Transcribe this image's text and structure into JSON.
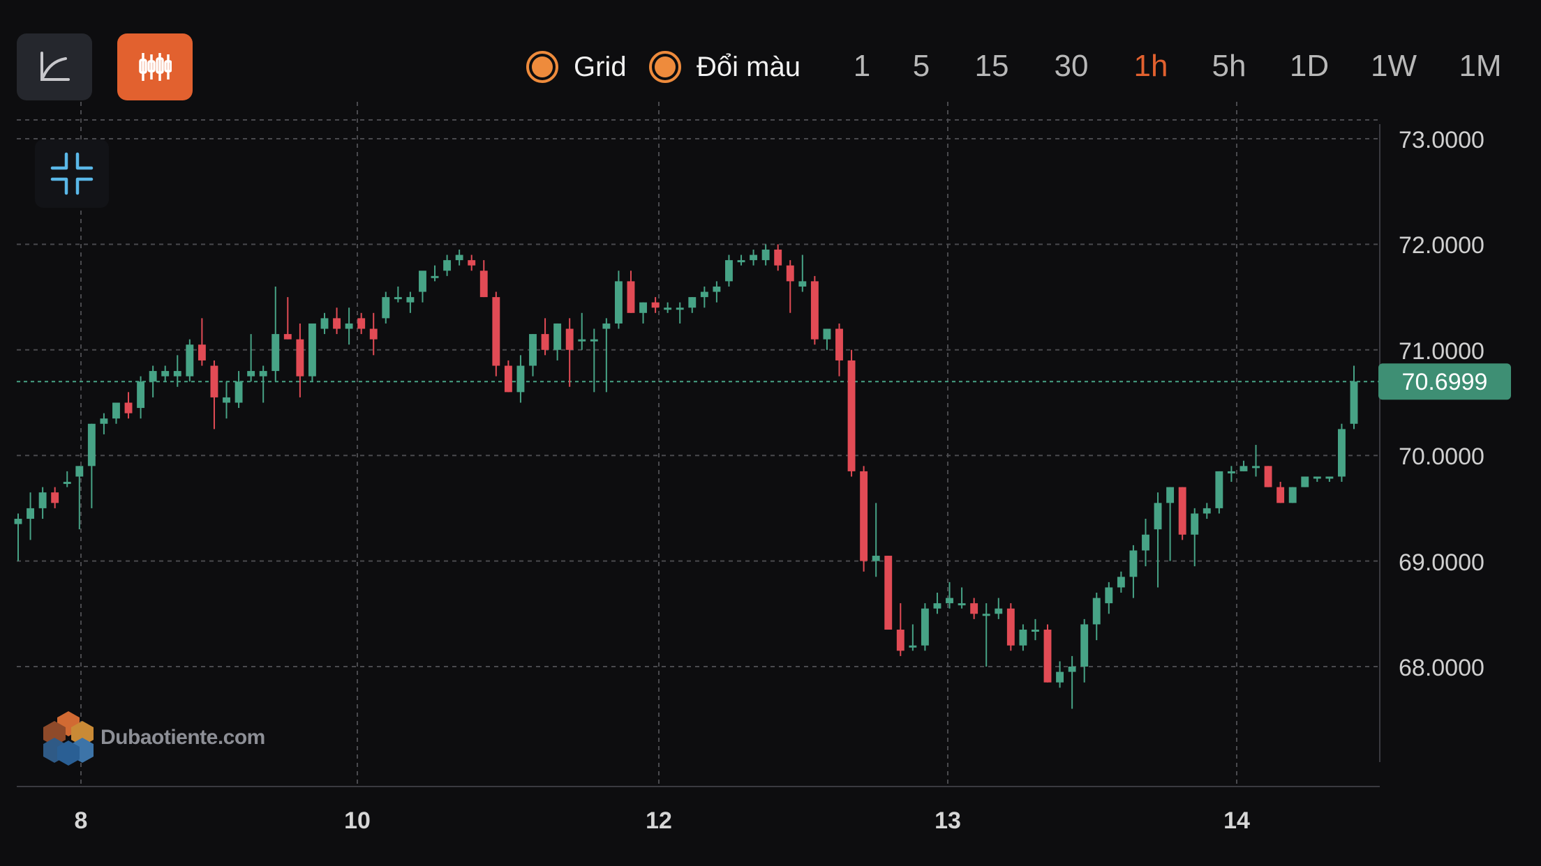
{
  "toolbar": {
    "chart_mode_buttons": [
      {
        "icon": "line-chart-icon",
        "active": false
      },
      {
        "icon": "candlestick-icon",
        "active": true
      }
    ],
    "toggles": [
      {
        "label": "Grid",
        "checked": true
      },
      {
        "label": "Đổi màu",
        "checked": true
      }
    ],
    "timeframes": [
      "1",
      "5",
      "15",
      "30",
      "1h",
      "5h",
      "1D",
      "1W",
      "1M"
    ],
    "active_timeframe": "1h",
    "collapse_icon": "collapse-arrows-icon"
  },
  "colors": {
    "background": "#0d0d0f",
    "up": "#47a386",
    "down": "#e24b55",
    "accent": "#e2612f",
    "grid": "#4a4a4e",
    "price_tag": "#3e8f74"
  },
  "watermark": {
    "text": "Dubaotiente.com",
    "icon": "dubaotiente-logo-icon"
  },
  "chart_data": {
    "type": "candlestick",
    "x_tick_labels": [
      "8",
      "10",
      "12",
      "13",
      "14"
    ],
    "y_tick_labels": [
      "73.0000",
      "72.0000",
      "71.0000",
      "70.0000",
      "69.0000",
      "68.0000"
    ],
    "y_ticks": [
      73,
      72,
      71,
      70,
      69,
      68
    ],
    "ylim": [
      67.1,
      73.2
    ],
    "grid": true,
    "last_price": 70.6999,
    "last_price_label": "70.6999",
    "candles": [
      [
        69.35,
        69.45,
        69.0,
        69.4
      ],
      [
        69.4,
        69.65,
        69.2,
        69.5
      ],
      [
        69.5,
        69.7,
        69.4,
        69.65
      ],
      [
        69.65,
        69.7,
        69.5,
        69.55
      ],
      [
        69.75,
        69.85,
        69.7,
        69.75
      ],
      [
        69.8,
        69.9,
        69.3,
        69.9
      ],
      [
        69.9,
        70.3,
        69.5,
        70.3
      ],
      [
        70.3,
        70.4,
        70.2,
        70.35
      ],
      [
        70.35,
        70.5,
        70.3,
        70.5
      ],
      [
        70.5,
        70.6,
        70.35,
        70.4
      ],
      [
        70.45,
        70.75,
        70.35,
        70.7
      ],
      [
        70.7,
        70.85,
        70.55,
        70.8
      ],
      [
        70.75,
        70.85,
        70.7,
        70.8
      ],
      [
        70.75,
        70.95,
        70.65,
        70.8
      ],
      [
        70.75,
        71.1,
        70.7,
        71.05
      ],
      [
        71.05,
        71.3,
        70.85,
        70.9
      ],
      [
        70.85,
        70.9,
        70.25,
        70.55
      ],
      [
        70.5,
        70.7,
        70.35,
        70.55
      ],
      [
        70.5,
        70.8,
        70.45,
        70.7
      ],
      [
        70.75,
        71.15,
        70.7,
        70.8
      ],
      [
        70.75,
        70.85,
        70.5,
        70.8
      ],
      [
        70.8,
        71.6,
        70.7,
        71.15
      ],
      [
        71.15,
        71.5,
        71.1,
        71.1
      ],
      [
        71.1,
        71.25,
        70.55,
        70.75
      ],
      [
        70.75,
        71.25,
        70.7,
        71.25
      ],
      [
        71.2,
        71.35,
        71.15,
        71.3
      ],
      [
        71.3,
        71.4,
        71.15,
        71.2
      ],
      [
        71.2,
        71.4,
        71.05,
        71.25
      ],
      [
        71.3,
        71.35,
        71.15,
        71.2
      ],
      [
        71.2,
        71.35,
        70.95,
        71.1
      ],
      [
        71.3,
        71.55,
        71.25,
        71.5
      ],
      [
        71.5,
        71.6,
        71.45,
        71.5
      ],
      [
        71.45,
        71.55,
        71.35,
        71.5
      ],
      [
        71.55,
        71.7,
        71.45,
        71.75
      ],
      [
        71.7,
        71.8,
        71.65,
        71.7
      ],
      [
        71.75,
        71.9,
        71.7,
        71.85
      ],
      [
        71.85,
        71.95,
        71.8,
        71.9
      ],
      [
        71.85,
        71.9,
        71.75,
        71.8
      ],
      [
        71.75,
        71.85,
        71.5,
        71.5
      ],
      [
        71.5,
        71.55,
        70.75,
        70.85
      ],
      [
        70.85,
        70.9,
        70.6,
        70.6
      ],
      [
        70.6,
        70.95,
        70.5,
        70.85
      ],
      [
        70.85,
        71.15,
        70.75,
        71.15
      ],
      [
        71.15,
        71.3,
        70.95,
        71.0
      ],
      [
        71.0,
        71.25,
        70.9,
        71.25
      ],
      [
        71.2,
        71.3,
        70.65,
        71.0
      ],
      [
        71.1,
        71.35,
        71.0,
        71.1
      ],
      [
        71.1,
        71.2,
        70.6,
        71.1
      ],
      [
        71.2,
        71.3,
        70.6,
        71.25
      ],
      [
        71.25,
        71.75,
        71.2,
        71.65
      ],
      [
        71.65,
        71.75,
        71.35,
        71.35
      ],
      [
        71.35,
        71.45,
        71.25,
        71.45
      ],
      [
        71.45,
        71.5,
        71.35,
        71.4
      ],
      [
        71.4,
        71.45,
        71.35,
        71.4
      ],
      [
        71.4,
        71.45,
        71.25,
        71.4
      ],
      [
        71.4,
        71.5,
        71.35,
        71.5
      ],
      [
        71.5,
        71.6,
        71.4,
        71.55
      ],
      [
        71.55,
        71.65,
        71.45,
        71.6
      ],
      [
        71.65,
        71.9,
        71.6,
        71.85
      ],
      [
        71.85,
        71.9,
        71.8,
        71.85
      ],
      [
        71.85,
        71.95,
        71.8,
        71.9
      ],
      [
        71.85,
        72.0,
        71.8,
        71.95
      ],
      [
        71.95,
        72.0,
        71.75,
        71.8
      ],
      [
        71.8,
        71.85,
        71.35,
        71.65
      ],
      [
        71.6,
        71.9,
        71.55,
        71.65
      ],
      [
        71.65,
        71.7,
        71.05,
        71.1
      ],
      [
        71.1,
        71.2,
        71.0,
        71.2
      ],
      [
        71.2,
        71.25,
        70.75,
        70.9
      ],
      [
        70.9,
        71.0,
        69.8,
        69.85
      ],
      [
        69.85,
        69.9,
        68.9,
        69.0
      ],
      [
        69.0,
        69.55,
        68.85,
        69.05
      ],
      [
        69.05,
        69.05,
        68.35,
        68.35
      ],
      [
        68.35,
        68.6,
        68.1,
        68.15
      ],
      [
        68.2,
        68.4,
        68.15,
        68.2
      ],
      [
        68.2,
        68.6,
        68.15,
        68.55
      ],
      [
        68.55,
        68.7,
        68.5,
        68.6
      ],
      [
        68.6,
        68.8,
        68.55,
        68.65
      ],
      [
        68.6,
        68.75,
        68.55,
        68.6
      ],
      [
        68.6,
        68.65,
        68.45,
        68.5
      ],
      [
        68.5,
        68.6,
        68.0,
        68.5
      ],
      [
        68.5,
        68.65,
        68.45,
        68.55
      ],
      [
        68.55,
        68.6,
        68.15,
        68.2
      ],
      [
        68.2,
        68.4,
        68.15,
        68.35
      ],
      [
        68.35,
        68.45,
        68.25,
        68.35
      ],
      [
        68.35,
        68.4,
        67.85,
        67.85
      ],
      [
        67.85,
        68.05,
        67.8,
        67.95
      ],
      [
        67.95,
        68.1,
        67.6,
        68.0
      ],
      [
        68.0,
        68.45,
        67.85,
        68.4
      ],
      [
        68.4,
        68.7,
        68.25,
        68.65
      ],
      [
        68.6,
        68.8,
        68.5,
        68.75
      ],
      [
        68.75,
        68.9,
        68.7,
        68.85
      ],
      [
        68.85,
        69.15,
        68.65,
        69.1
      ],
      [
        69.1,
        69.4,
        68.95,
        69.25
      ],
      [
        69.3,
        69.65,
        68.75,
        69.55
      ],
      [
        69.55,
        69.7,
        69.0,
        69.7
      ],
      [
        69.7,
        69.7,
        69.2,
        69.25
      ],
      [
        69.25,
        69.5,
        68.95,
        69.45
      ],
      [
        69.45,
        69.55,
        69.4,
        69.5
      ],
      [
        69.5,
        69.85,
        69.45,
        69.85
      ],
      [
        69.85,
        69.9,
        69.75,
        69.85
      ],
      [
        69.85,
        69.95,
        69.85,
        69.9
      ],
      [
        69.9,
        70.1,
        69.8,
        69.9
      ],
      [
        69.9,
        69.9,
        69.7,
        69.7
      ],
      [
        69.7,
        69.75,
        69.55,
        69.55
      ],
      [
        69.55,
        69.7,
        69.55,
        69.7
      ],
      [
        69.7,
        69.8,
        69.7,
        69.8
      ],
      [
        69.8,
        69.8,
        69.75,
        69.8
      ],
      [
        69.8,
        69.8,
        69.75,
        69.8
      ],
      [
        69.8,
        70.3,
        69.75,
        70.25
      ],
      [
        70.3,
        70.85,
        70.25,
        70.7
      ]
    ]
  }
}
